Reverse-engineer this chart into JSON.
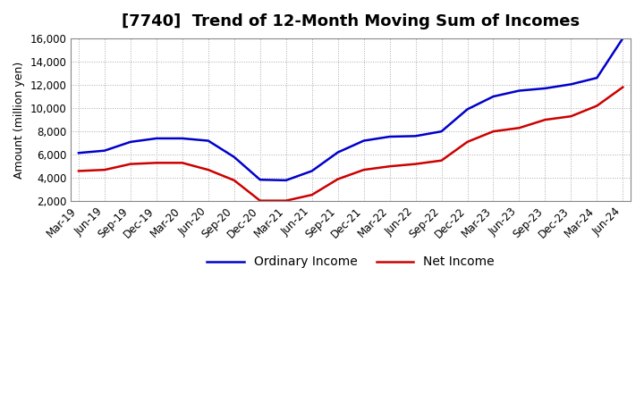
{
  "title": "[7740]  Trend of 12-Month Moving Sum of Incomes",
  "ylabel": "Amount (million yen)",
  "ylim": [
    2000,
    16000
  ],
  "yticks": [
    2000,
    4000,
    6000,
    8000,
    10000,
    12000,
    14000,
    16000
  ],
  "background_color": "#ffffff",
  "grid_color": "#aaaaaa",
  "ordinary_income_color": "#0000cc",
  "net_income_color": "#cc0000",
  "x_labels": [
    "Mar-19",
    "Jun-19",
    "Sep-19",
    "Dec-19",
    "Mar-20",
    "Jun-20",
    "Sep-20",
    "Dec-20",
    "Mar-21",
    "Jun-21",
    "Sep-21",
    "Dec-21",
    "Mar-22",
    "Jun-22",
    "Sep-22",
    "Dec-22",
    "Mar-23",
    "Jun-23",
    "Sep-23",
    "Dec-23",
    "Mar-24",
    "Jun-24"
  ],
  "ordinary_income": [
    6150,
    6350,
    7100,
    7400,
    7400,
    7200,
    5800,
    3850,
    3800,
    4600,
    6200,
    7200,
    7550,
    7600,
    8000,
    9900,
    11000,
    11500,
    11700,
    12050,
    12600,
    16000
  ],
  "net_income": [
    4600,
    4700,
    5200,
    5300,
    5300,
    4700,
    3800,
    2050,
    2050,
    2550,
    3900,
    4700,
    5000,
    5200,
    5500,
    7100,
    8000,
    8300,
    9000,
    9300,
    10200,
    11800
  ],
  "legend_labels": [
    "Ordinary Income",
    "Net Income"
  ]
}
